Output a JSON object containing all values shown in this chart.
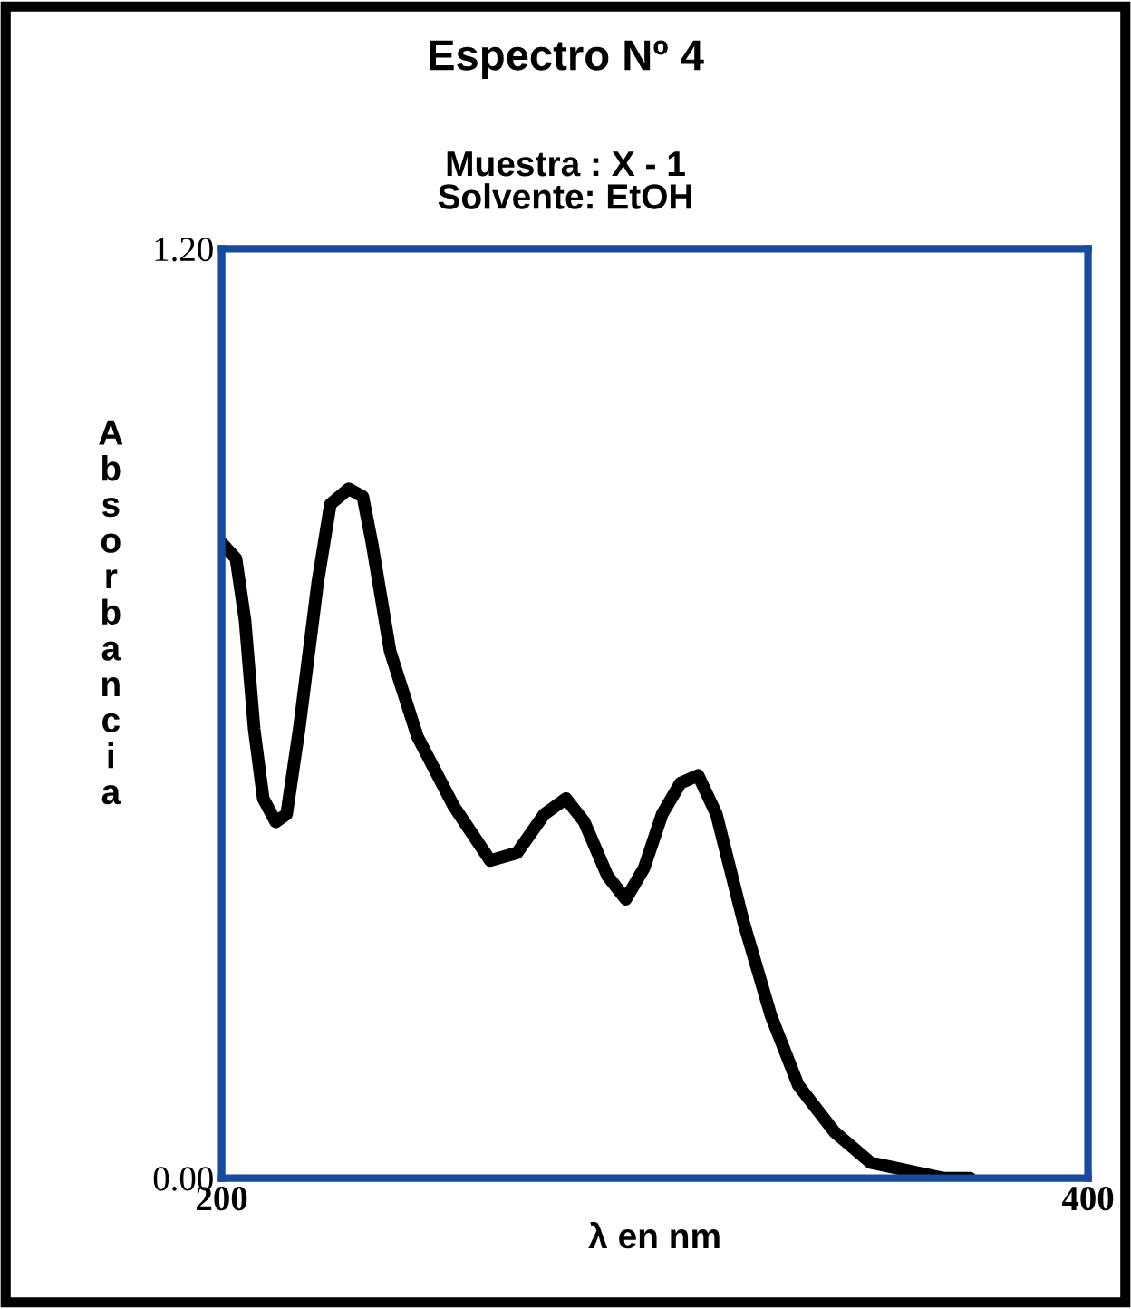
{
  "chart_data": {
    "type": "line",
    "title": "Espectro Nº 4",
    "subtitle": "Muestra : X - 1\nSolvente: EtOH",
    "xlabel": "λ en nm",
    "ylabel": "Absorbancia",
    "xlim": [
      200,
      400
    ],
    "xticks": [
      200,
      400
    ],
    "ylim": [
      0,
      1.2
    ],
    "yticks": [
      {
        "value": 0,
        "label": "0.00"
      },
      {
        "value": 1.2,
        "label": "1.20"
      }
    ],
    "legend": false,
    "series": [
      {
        "color": "#000000",
        "x": [
          200,
          203.3,
          205.4,
          207.5,
          209.6,
          212.5,
          215,
          217.9,
          222.2,
          225.1,
          229.3,
          232.6,
          234.7,
          238.9,
          245.2,
          253.6,
          262,
          268.2,
          274.5,
          279.5,
          283.7,
          289.1,
          293.3,
          297.5,
          301.7,
          305.9,
          310,
          314.2,
          320.5,
          326.8,
          333.1,
          341.4,
          349.8,
          358.2,
          366.5,
          372.8
        ],
        "values": [
          0.82,
          0.8,
          0.72,
          0.58,
          0.49,
          0.46,
          0.47,
          0.58,
          0.77,
          0.87,
          0.89,
          0.88,
          0.82,
          0.68,
          0.57,
          0.48,
          0.41,
          0.42,
          0.47,
          0.49,
          0.46,
          0.39,
          0.36,
          0.4,
          0.47,
          0.51,
          0.52,
          0.47,
          0.33,
          0.21,
          0.12,
          0.06,
          0.02,
          0.01,
          0.0,
          0.0
        ]
      }
    ]
  }
}
